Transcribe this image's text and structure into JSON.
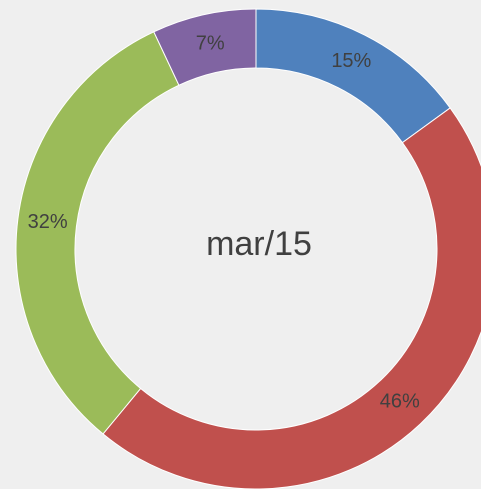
{
  "chart_data": {
    "type": "donut",
    "center_label": "mar/15",
    "categories": [
      null,
      null,
      null,
      null
    ],
    "values": [
      15,
      46,
      32,
      7
    ],
    "value_labels": [
      "15%",
      "46%",
      "32%",
      "7%"
    ],
    "colors": [
      "#4f81bd",
      "#c0504d",
      "#9bbb59",
      "#8064a2"
    ]
  }
}
